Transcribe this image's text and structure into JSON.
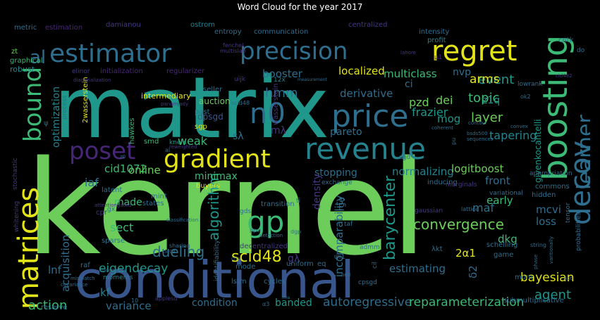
{
  "title": "Word Cloud for the year 2017",
  "colors": {
    "background": "#000000",
    "yellow": "#e2e419",
    "lime": "#6ccd5a",
    "green": "#3bbb75",
    "teal": "#1f978b",
    "tealblue": "#25838e",
    "blue": "#2e6e8e",
    "darkblue": "#39568c",
    "indigo": "#453781",
    "purple": "#482677",
    "darkpurple": "#440154"
  },
  "words": [
    {
      "text": "kernel",
      "color": "#6ccd5a"
    },
    {
      "text": "matrix",
      "color": "#1f978b"
    },
    {
      "text": "conditional",
      "color": "#39568c"
    },
    {
      "text": "revenue",
      "color": "#25838e"
    },
    {
      "text": "gradient",
      "color": "#e2e419"
    },
    {
      "text": "boosting",
      "color": "#3bbb75"
    },
    {
      "text": "estimator",
      "color": "#2e6e8e"
    },
    {
      "text": "precision",
      "color": "#2e6e8e"
    },
    {
      "text": "regret",
      "color": "#e2e419"
    },
    {
      "text": "poset",
      "color": "#482677"
    },
    {
      "text": "price",
      "color": "#2e6e8e"
    },
    {
      "text": "matrices",
      "color": "#e2e419"
    },
    {
      "text": "decoy",
      "color": "#2e6e8e"
    },
    {
      "text": "learner",
      "color": "#2e6e8e"
    },
    {
      "text": "gp",
      "color": "#3bbb75"
    },
    {
      "text": "n0",
      "color": "#2e6e8e"
    },
    {
      "text": "bound",
      "color": "#3bbb75"
    },
    {
      "text": "al",
      "color": "#2e6e8e"
    },
    {
      "text": "scid48",
      "color": "#e2e419"
    },
    {
      "text": "algorithm",
      "color": "#1f978b"
    },
    {
      "text": "convergence",
      "color": "#6ccd5a"
    },
    {
      "text": "barycenter",
      "color": "#1f978b"
    },
    {
      "text": "dueling",
      "color": "#2e6e8e"
    },
    {
      "text": "eigendecay",
      "color": "#1f978b"
    },
    {
      "text": "action",
      "color": "#3bbb75"
    },
    {
      "text": "autoregressive",
      "color": "#2e6e8e"
    },
    {
      "text": "reparameterization",
      "color": "#3bbb75"
    },
    {
      "text": "bayesian",
      "color": "#e2e419"
    },
    {
      "text": "agent",
      "color": "#1f978b"
    },
    {
      "text": "layer",
      "color": "#6ccd5a"
    },
    {
      "text": "topic",
      "color": "#3bbb75"
    },
    {
      "text": "event",
      "color": "#1f978b"
    },
    {
      "text": "arms",
      "color": "#e2e419"
    },
    {
      "text": "localized",
      "color": "#e2e419"
    },
    {
      "text": "multiclass",
      "color": "#3bbb75"
    },
    {
      "text": "booster",
      "color": "#2e6e8e"
    },
    {
      "text": "hmm",
      "color": "#2e6e8e"
    },
    {
      "text": "derivative",
      "color": "#2e6e8e"
    },
    {
      "text": "frazier",
      "color": "#1f978b"
    },
    {
      "text": "pzd",
      "color": "#6ccd5a"
    },
    {
      "text": "dei",
      "color": "#6ccd5a"
    },
    {
      "text": "mog",
      "color": "#1f978b"
    },
    {
      "text": "pareto",
      "color": "#2e6e8e"
    },
    {
      "text": "mλ",
      "color": "#453781"
    },
    {
      "text": "sλ",
      "color": "#2e6e8e"
    },
    {
      "text": "weak",
      "color": "#3bbb75"
    },
    {
      "text": "tapering",
      "color": "#25838e"
    },
    {
      "text": "stopping",
      "color": "#2e6e8e"
    },
    {
      "text": "normalizing",
      "color": "#25838e"
    },
    {
      "text": "logitboost",
      "color": "#6ccd5a"
    },
    {
      "text": "online",
      "color": "#6ccd5a"
    },
    {
      "text": "minimax",
      "color": "#3bbb75"
    },
    {
      "text": "cid1072",
      "color": "#3bbb75"
    },
    {
      "text": "density",
      "color": "#453781"
    },
    {
      "text": "iaf",
      "color": "#2e6e8e"
    },
    {
      "text": "made",
      "color": "#3bbb75"
    },
    {
      "text": "front",
      "color": "#2e6e8e"
    },
    {
      "text": "early",
      "color": "#3bbb75"
    },
    {
      "text": "maf",
      "color": "#2e6e8e"
    },
    {
      "text": "mcvi",
      "color": "#2e6e8e"
    },
    {
      "text": "loss",
      "color": "#2e6e8e"
    },
    {
      "text": "dkg",
      "color": "#3bbb75"
    },
    {
      "text": "sect",
      "color": "#3bbb75"
    },
    {
      "text": "estimating",
      "color": "#2e6e8e"
    },
    {
      "text": "incomparability",
      "color": "#2e6e8e"
    },
    {
      "text": "variance",
      "color": "#2e6e8e"
    },
    {
      "text": "condition",
      "color": "#2e6e8e"
    },
    {
      "text": "banded",
      "color": "#1f978b"
    },
    {
      "text": "acquisition",
      "color": "#2e6e8e"
    },
    {
      "text": "lnf",
      "color": "#2e6e8e"
    },
    {
      "text": "optimization",
      "color": "#25838e"
    },
    {
      "text": "gλ",
      "color": "#453781"
    },
    {
      "text": "δ2",
      "color": "#2e6e8e"
    },
    {
      "text": "2α1",
      "color": "#e2e419"
    },
    {
      "text": "z1q",
      "color": "#1f978b"
    },
    {
      "text": "nvp",
      "color": "#2e6e8e"
    },
    {
      "text": "ci",
      "color": "#2e6e8e"
    },
    {
      "text": "kf",
      "color": "#25838e"
    },
    {
      "text": "givenkocantelli",
      "color": "#1f978b"
    },
    {
      "text": "intermediary",
      "color": "#e2e419"
    },
    {
      "text": "auction",
      "color": "#6ccd5a"
    },
    {
      "text": "dpsgd",
      "color": "#39568c"
    },
    {
      "text": "initialization",
      "color": "#482677"
    },
    {
      "text": "regularizer",
      "color": "#482677"
    },
    {
      "text": "metric",
      "color": "#2e6e8e"
    },
    {
      "text": "estimation",
      "color": "#482677"
    },
    {
      "text": "damianou",
      "color": "#453781"
    },
    {
      "text": "ostrom",
      "color": "#25838e"
    },
    {
      "text": "entropy",
      "color": "#2e6e8e"
    },
    {
      "text": "communication",
      "color": "#2e6e8e"
    },
    {
      "text": "centralized",
      "color": "#453781"
    },
    {
      "text": "intensity",
      "color": "#2e6e8e"
    },
    {
      "text": "cntk",
      "color": "#2e6e8e"
    },
    {
      "text": "robust",
      "color": "#25838e"
    },
    {
      "text": "graphical",
      "color": "#3bbb75"
    },
    {
      "text": "zt",
      "color": "#6ccd5a"
    },
    {
      "text": "elinor",
      "color": "#453781"
    },
    {
      "text": "fenchel",
      "color": "#453781"
    },
    {
      "text": "profit",
      "color": "#25838e"
    },
    {
      "text": "μ1",
      "color": "#482677"
    },
    {
      "text": "do",
      "color": "#2e6e8e"
    },
    {
      "text": "seller",
      "color": "#2e6e8e"
    },
    {
      "text": "12x",
      "color": "#25838e"
    },
    {
      "text": "past",
      "color": "#2e6e8e"
    },
    {
      "text": "process",
      "color": "#2e6e8e"
    },
    {
      "text": "2wasserstein",
      "color": "#e2e419"
    },
    {
      "text": "hawkes",
      "color": "#3bbb75"
    },
    {
      "text": "sgp",
      "color": "#e2e419"
    },
    {
      "text": "smd",
      "color": "#3bbb75"
    },
    {
      "text": "kners",
      "color": "#1f978b"
    },
    {
      "text": "stochastic",
      "color": "#453781"
    },
    {
      "text": "whitening",
      "color": "#453781"
    },
    {
      "text": "mint",
      "color": "#2e6e8e"
    },
    {
      "text": "states",
      "color": "#2e6e8e"
    },
    {
      "text": "buyers",
      "color": "#e2e419"
    },
    {
      "text": "latent",
      "color": "#2e6e8e"
    },
    {
      "text": "cpr",
      "color": "#453781"
    },
    {
      "text": "gx",
      "color": "#2e6e8e"
    },
    {
      "text": "sparse",
      "color": "#2e6e8e"
    },
    {
      "text": "raf",
      "color": "#2e6e8e"
    },
    {
      "text": "moments",
      "color": "#25838e"
    },
    {
      "text": "reserve",
      "color": "#2e6e8e"
    },
    {
      "text": "transition",
      "color": "#2e6e8e"
    },
    {
      "text": "exchange",
      "color": "#2e6e8e"
    },
    {
      "text": "inducing",
      "color": "#2e6e8e"
    },
    {
      "text": "appropriation",
      "color": "#2e6e8e"
    },
    {
      "text": "commons",
      "color": "#2e6e8e"
    },
    {
      "text": "hidden",
      "color": "#2e6e8e"
    },
    {
      "text": "tensor",
      "color": "#2e6e8e"
    },
    {
      "text": "probabilities",
      "color": "#2e6e8e"
    },
    {
      "text": "lattice",
      "color": "#2e6e8e"
    },
    {
      "text": "string",
      "color": "#2e6e8e"
    },
    {
      "text": "schelling",
      "color": "#2e6e8e"
    },
    {
      "text": "game",
      "color": "#2e6e8e"
    },
    {
      "text": "mom",
      "color": "#2e6e8e"
    },
    {
      "text": "submultiplicative",
      "color": "#2e6e8e"
    },
    {
      "text": "admm",
      "color": "#2e6e8e"
    },
    {
      "text": "eq",
      "color": "#2e6e8e"
    },
    {
      "text": "ψi1",
      "color": "#2e6e8e"
    },
    {
      "text": "λkt",
      "color": "#2e6e8e"
    },
    {
      "text": "cil",
      "color": "#2e6e8e"
    },
    {
      "text": "cpsgd",
      "color": "#2e6e8e"
    },
    {
      "text": "lstm",
      "color": "#2e6e8e"
    },
    {
      "text": "cycles",
      "color": "#2e6e8e"
    },
    {
      "text": "uniform",
      "color": "#2e6e8e"
    },
    {
      "text": "mode",
      "color": "#2e6e8e"
    },
    {
      "text": "decentralized",
      "color": "#453781"
    },
    {
      "text": "identifiability",
      "color": "#2e6e8e"
    },
    {
      "text": "gds",
      "color": "#2e6e8e"
    },
    {
      "text": "taf",
      "color": "#2e6e8e"
    },
    {
      "text": "rge",
      "color": "#2e6e8e"
    },
    {
      "text": "ti",
      "color": "#2e6e8e"
    },
    {
      "text": "variational",
      "color": "#2e6e8e"
    },
    {
      "text": "gaussian",
      "color": "#453781"
    },
    {
      "text": "sgd",
      "color": "#2e6e8e"
    },
    {
      "text": "marginals",
      "color": "#453781"
    },
    {
      "text": "lowrank",
      "color": "#2e6e8e"
    },
    {
      "text": "ok2",
      "color": "#2e6e8e"
    },
    {
      "text": "contour",
      "color": "#2e6e8e"
    },
    {
      "text": "coherent",
      "color": "#2e6e8e"
    },
    {
      "text": "convex",
      "color": "#2e6e8e"
    },
    {
      "text": "bsds500",
      "color": "#2e6e8e"
    },
    {
      "text": "sequences",
      "color": "#2e6e8e"
    },
    {
      "text": "classification",
      "color": "#2e6e8e"
    },
    {
      "text": "applesd",
      "color": "#453781"
    },
    {
      "text": "moments",
      "color": "#2e6e8e"
    },
    {
      "text": "reweighted",
      "color": "#453781"
    },
    {
      "text": "mismatch",
      "color": "#2e6e8e"
    },
    {
      "text": "covariance",
      "color": "#2e6e8e"
    },
    {
      "text": "detection",
      "color": "#2e6e8e"
    },
    {
      "text": "ppo",
      "color": "#2e6e8e"
    },
    {
      "text": "dgp",
      "color": "#2e6e8e"
    },
    {
      "text": "ima",
      "color": "#2e6e8e"
    },
    {
      "text": "hed",
      "color": "#2e6e8e"
    },
    {
      "text": "opt",
      "color": "#2e6e8e"
    },
    {
      "text": "varitionally",
      "color": "#2e6e8e"
    },
    {
      "text": "phase",
      "color": "#2e6e8e"
    },
    {
      "text": "α3",
      "color": "#2e6e8e"
    },
    {
      "text": "10",
      "color": "#2e6e8e"
    },
    {
      "text": "cnn",
      "color": "#2e6e8e"
    },
    {
      "text": "snr",
      "color": "#2e6e8e"
    },
    {
      "text": "z0",
      "color": "#2e6e8e"
    },
    {
      "text": "ai",
      "color": "#2e6e8e"
    },
    {
      "text": "measurement",
      "color": "#2e6e8e"
    },
    {
      "text": "wasserstein",
      "color": "#453781"
    },
    {
      "text": "scid48",
      "color": "#2e6e8e"
    },
    {
      "text": "panamjady",
      "color": "#453781"
    },
    {
      "text": "attentiongated",
      "color": "#453781"
    },
    {
      "text": "sharing",
      "color": "#2e6e8e"
    },
    {
      "text": "cid04",
      "color": "#2e6e8e"
    },
    {
      "text": "ψ",
      "color": "#2e6e8e"
    },
    {
      "text": "pu",
      "color": "#2e6e8e"
    },
    {
      "text": "uijk",
      "color": "#453781"
    },
    {
      "text": "multislab",
      "color": "#453781"
    },
    {
      "text": "diagonalization",
      "color": "#453781"
    },
    {
      "text": "cid482",
      "color": "#453781"
    },
    {
      "text": "lahore",
      "color": "#453781"
    }
  ]
}
